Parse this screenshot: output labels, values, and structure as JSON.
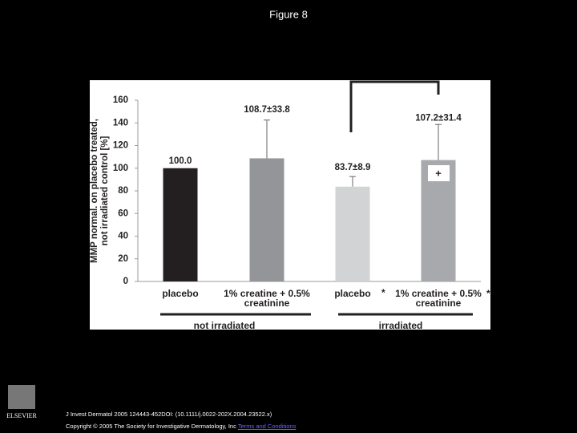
{
  "slide": {
    "title": "Figure 8",
    "citation": "J Invest Dermatol 2005 124443-452DOI: (10.1111/j.0022-202X.2004.23522.x)",
    "copyright": "Copyright © 2005 The Society for Investigative Dermatology, Inc",
    "link": "Terms and Conditions",
    "logo": "ELSEVIER"
  },
  "chart_data": {
    "type": "bar",
    "y_label": [
      "MMP normal. on placebo treated,",
      "not irradiated control [%]"
    ],
    "categories": [
      "placebo",
      "1% creatine + 0.5% creatinine",
      "placebo",
      "1% creatine + 0.5% creatinine"
    ],
    "values": [
      100.0,
      108.7,
      83.7,
      107.2
    ],
    "errors": [
      null,
      33.8,
      8.9,
      31.4
    ],
    "value_labels": [
      "100.0",
      "108.7±33.8",
      "83.7±8.9",
      "107.2±31.4"
    ],
    "colors": [
      "#231f20",
      "#939598",
      "#d1d3d4",
      "#a7a9ac"
    ],
    "groups": [
      "not irradiated",
      "irradiated"
    ],
    "annotations": [
      "*",
      "*",
      "+"
    ],
    "ylim": [
      0,
      160
    ],
    "yticks": [
      0,
      20,
      40,
      60,
      80,
      100,
      120,
      140,
      160
    ],
    "grid": false
  }
}
